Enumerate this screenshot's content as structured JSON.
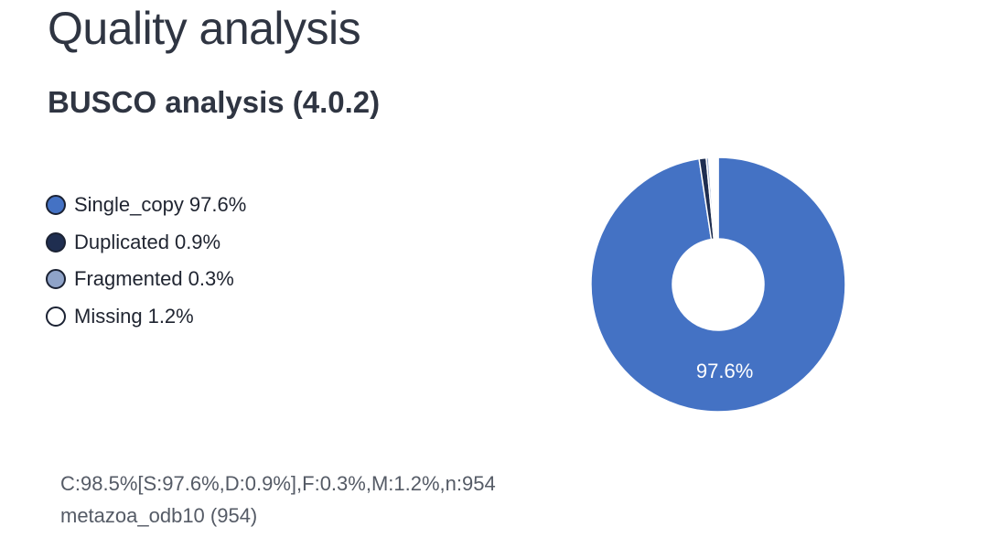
{
  "page": {
    "title": "Quality analysis",
    "section_title": "BUSCO analysis (4.0.2)"
  },
  "chart_data": {
    "type": "pie",
    "style": "donut",
    "categories": [
      "Single_copy",
      "Duplicated",
      "Fragmented",
      "Missing"
    ],
    "values": [
      97.6,
      0.9,
      0.3,
      1.2
    ],
    "value_labels": [
      "97.6%",
      "0.9%",
      "0.3%",
      "1.2%"
    ],
    "colors": [
      "#4472c4",
      "#1f2e50",
      "#8fa3c8",
      "#ffffff"
    ],
    "slice_label_shown": "97.6%",
    "legend_placement": "left",
    "start_angle_deg": 0,
    "direction": "clockwise"
  },
  "summary": {
    "line1": "C:98.5%[S:97.6%,D:0.9%],F:0.3%,M:1.2%,n:954",
    "line2": "metazoa_odb10 (954)"
  }
}
